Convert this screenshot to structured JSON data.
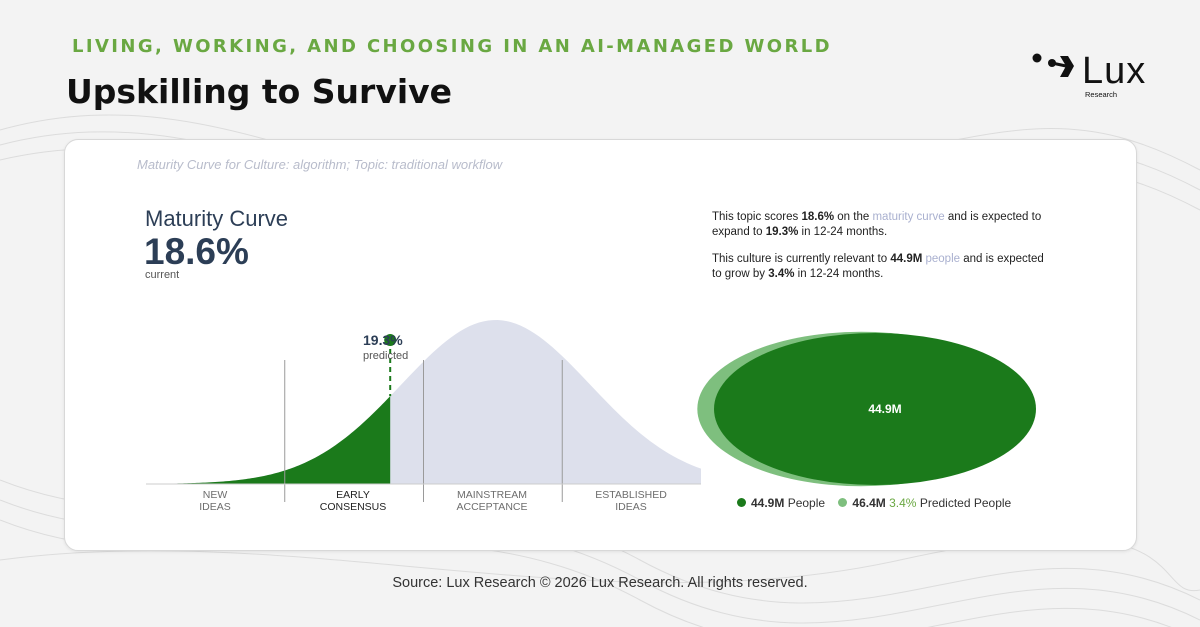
{
  "kicker": "LIVING, WORKING, AND CHOOSING IN AN AI-MANAGED WORLD",
  "title": "Upskilling to Survive",
  "logo": {
    "word": "Lux",
    "sub": "Research"
  },
  "card": {
    "subtitle": "Maturity Curve for Culture: algorithm; Topic: traditional workflow",
    "maturity_label": "Maturity Curve",
    "maturity_value": "18.6%",
    "maturity_current_label": "current",
    "predicted_value": "19.3%",
    "predicted_label": "predicted",
    "desc1": {
      "a": "This topic scores ",
      "b": "18.6%",
      "c": " on the ",
      "d": "maturity curve",
      "e": " and is expected to expand to ",
      "f": "19.3%",
      "g": " in 12-24 months."
    },
    "desc2": {
      "a": "This culture is currently relevant to ",
      "b": "44.9M",
      "c": " ",
      "d": "people",
      "e": " and is expected to grow by ",
      "f": "3.4%",
      "g": " in 12-24 months."
    }
  },
  "source": "Source: Lux Research © 2026 Lux Research. All rights reserved.",
  "colors": {
    "green": "#1b7a1b",
    "light_green": "#7ebf7e",
    "curve_fill": "#dde0ec",
    "kicker": "#6aa842",
    "navy": "#2c3e56"
  },
  "chart_data": [
    {
      "type": "area",
      "categories": [
        {
          "line1": "NEW",
          "line2": "IDEAS"
        },
        {
          "line1": "EARLY",
          "line2": "CONSENSUS"
        },
        {
          "line1": "MAINSTREAM",
          "line2": "ACCEPTANCE"
        },
        {
          "line1": "ESTABLISHED",
          "line2": "IDEAS"
        }
      ],
      "active_category_index": 1,
      "current_percent": 18.6,
      "predicted_percent": 19.3,
      "current_filled_fraction": 0.44
    },
    {
      "type": "bubble",
      "center_label": "44.9M",
      "series": [
        {
          "name": "People",
          "value": 44.9,
          "value_label": "44.9M",
          "color": "#1b7a1b"
        },
        {
          "name": "Predicted People",
          "value": 46.4,
          "value_label": "46.4M",
          "growth_label": "3.4%",
          "color": "#7ebf7e"
        }
      ]
    }
  ]
}
